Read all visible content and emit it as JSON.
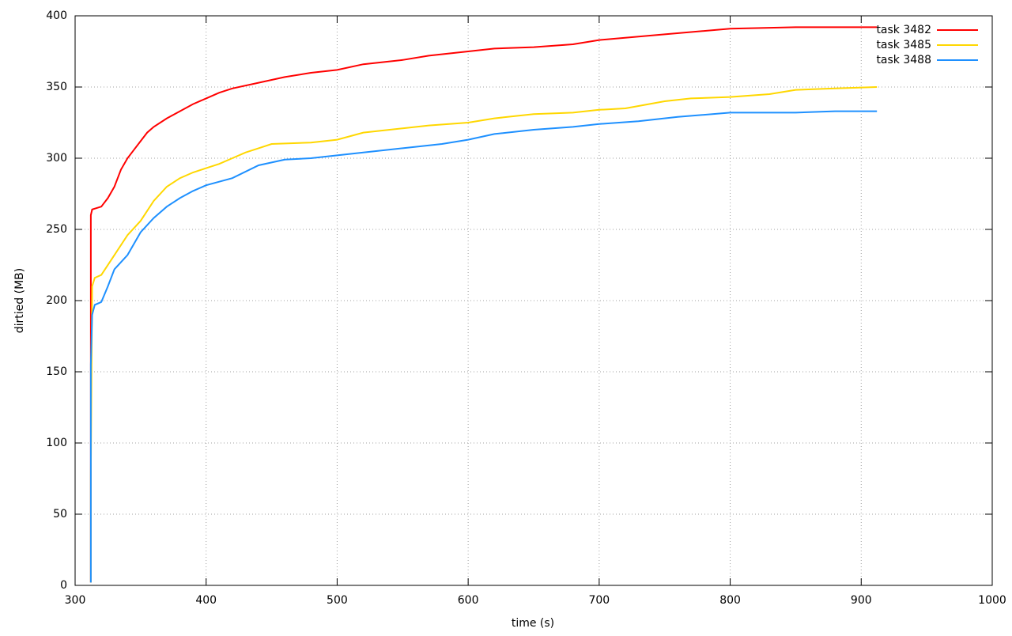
{
  "chart_data": {
    "type": "line",
    "xlabel": "time (s)",
    "ylabel": "dirtied (MB)",
    "xlim": [
      300,
      1000
    ],
    "xticks": [
      300,
      400,
      500,
      600,
      700,
      800,
      900,
      1000
    ],
    "ylim": [
      0,
      400
    ],
    "yticks": [
      0,
      50,
      100,
      150,
      200,
      250,
      300,
      350,
      400
    ],
    "grid": true,
    "legend": "top-right",
    "series": [
      {
        "name": "task 3482",
        "color": "#ff0000",
        "x": [
          312,
          312,
          313,
          320,
          325,
          330,
          335,
          340,
          345,
          350,
          355,
          360,
          370,
          380,
          390,
          400,
          410,
          420,
          440,
          460,
          480,
          500,
          520,
          550,
          570,
          600,
          620,
          650,
          680,
          700,
          750,
          800,
          850,
          912
        ],
        "values": [
          2,
          260,
          264,
          266,
          272,
          280,
          292,
          300,
          306,
          312,
          318,
          322,
          328,
          333,
          338,
          342,
          346,
          349,
          353,
          357,
          360,
          362,
          366,
          369,
          372,
          375,
          377,
          378,
          380,
          383,
          387,
          391,
          392,
          392
        ]
      },
      {
        "name": "task 3485",
        "color": "#ffd700",
        "x": [
          312,
          312,
          313,
          315,
          320,
          330,
          340,
          350,
          360,
          370,
          380,
          390,
          400,
          410,
          420,
          430,
          440,
          450,
          480,
          500,
          520,
          550,
          570,
          600,
          620,
          650,
          680,
          700,
          720,
          750,
          770,
          800,
          830,
          850,
          880,
          912
        ],
        "values": [
          2,
          78,
          210,
          216,
          218,
          232,
          246,
          256,
          270,
          280,
          286,
          290,
          293,
          296,
          300,
          304,
          307,
          310,
          311,
          313,
          318,
          321,
          323,
          325,
          328,
          331,
          332,
          334,
          335,
          340,
          342,
          343,
          345,
          348,
          349,
          350
        ]
      },
      {
        "name": "task 3488",
        "color": "#1e90ff",
        "x": [
          312,
          312,
          313,
          315,
          320,
          325,
          330,
          340,
          350,
          360,
          370,
          380,
          390,
          400,
          420,
          440,
          460,
          480,
          500,
          520,
          550,
          580,
          600,
          620,
          650,
          680,
          700,
          730,
          760,
          800,
          850,
          880,
          912
        ],
        "values": [
          2,
          155,
          190,
          197,
          199,
          210,
          222,
          232,
          248,
          258,
          266,
          272,
          277,
          281,
          286,
          295,
          299,
          300,
          302,
          304,
          307,
          310,
          313,
          317,
          320,
          322,
          324,
          326,
          329,
          332,
          332,
          333,
          333
        ]
      }
    ]
  }
}
